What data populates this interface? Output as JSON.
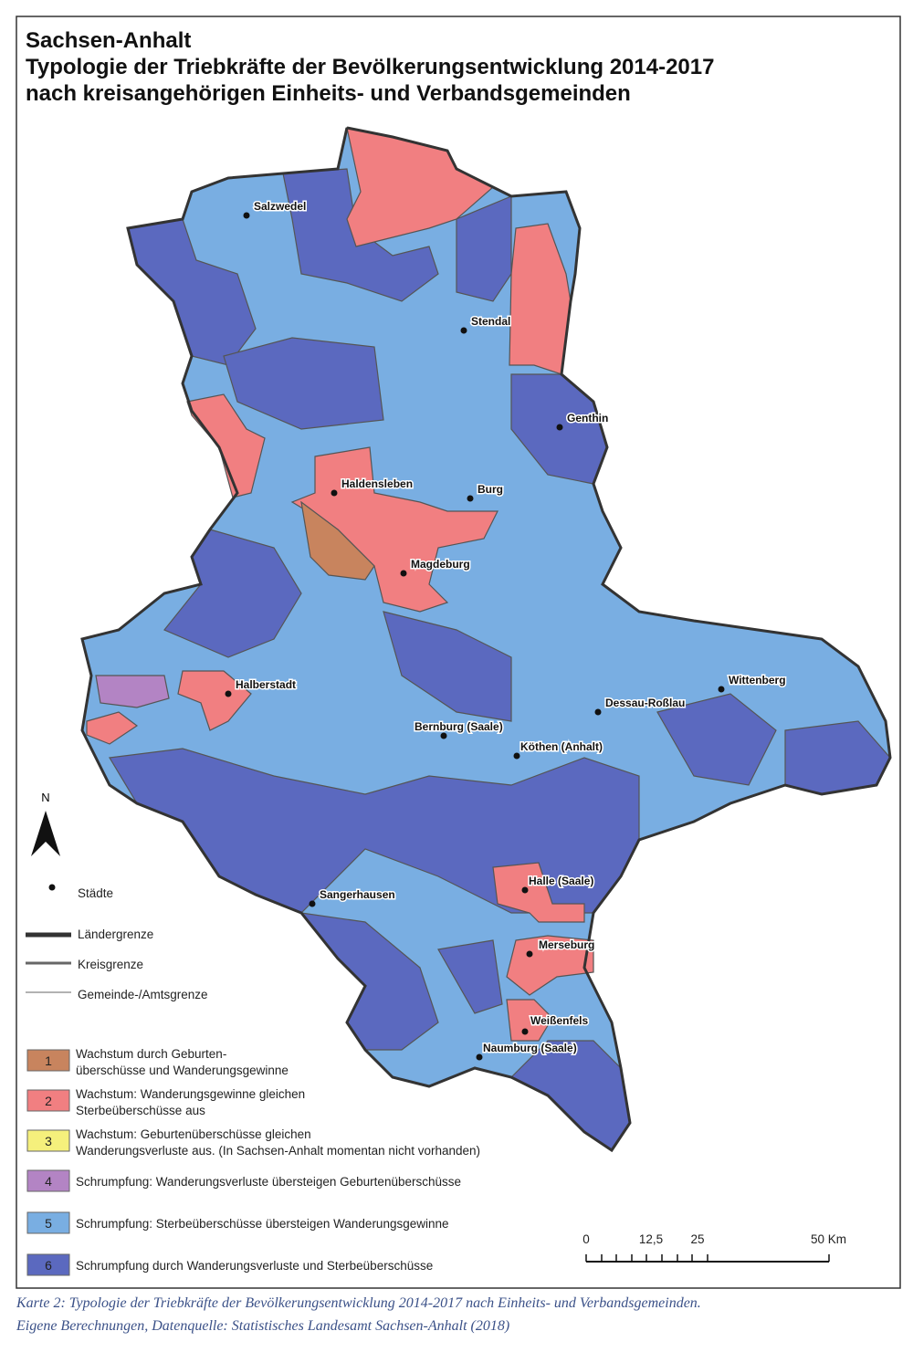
{
  "title": [
    "Sachsen-Anhalt",
    "Typologie der Triebkräfte der Bevölkerungsentwicklung 2014-2017",
    "nach kreisangehörigen Einheits- und Verbandsgemeinden"
  ],
  "cities": [
    "Salzwedel",
    "Stendal",
    "Genthin",
    "Haldensleben",
    "Burg",
    "Magdeburg",
    "Halberstadt",
    "Wittenberg",
    "Dessau-Roßlau",
    "Bernburg (Saale)",
    "Köthen (Anhalt)",
    "Sangerhausen",
    "Halle (Saale)",
    "Merseburg",
    "Weißenfels",
    "Naumburg (Saale)"
  ],
  "north": "N",
  "legend": {
    "cities": "Städte",
    "borders": [
      "Ländergrenze",
      "Kreisgrenze",
      "Gemeinde-/Amtsgrenze"
    ],
    "classes": [
      {
        "number": "1",
        "text": [
          "Wachstum durch Geburten-",
          "überschüsse und Wanderungsgewinne"
        ]
      },
      {
        "number": "2",
        "text": [
          "Wachstum: Wanderungsgewinne gleichen",
          "Sterbeüberschüsse aus"
        ]
      },
      {
        "number": "3",
        "text": [
          "Wachstum: Geburtenüberschüsse gleichen",
          "Wanderungsverluste aus. (In Sachsen-Anhalt momentan nicht vorhanden)"
        ]
      },
      {
        "number": "4",
        "text": [
          "Schrumpfung: Wanderungsverluste übersteigen Geburtenüberschüsse"
        ]
      },
      {
        "number": "5",
        "text": [
          "Schrumpfung: Sterbeüberschüsse übersteigen Wanderungsgewinne"
        ]
      },
      {
        "number": "6",
        "text": [
          "Schrumpfung durch Wanderungsverluste und Sterbeüberschüsse"
        ]
      }
    ]
  },
  "scale_bar": [
    "0",
    "12,5",
    "25",
    "50 Km"
  ],
  "caption": [
    "Karte 2: Typologie der Triebkräfte der Bevölkerungsentwicklung 2014-2017 nach Einheits- und Verbandsgemeinden.",
    "Eigene Berechnungen, Datenquelle: Statistisches Landesamt Sachsen-Anhalt (2018)"
  ]
}
